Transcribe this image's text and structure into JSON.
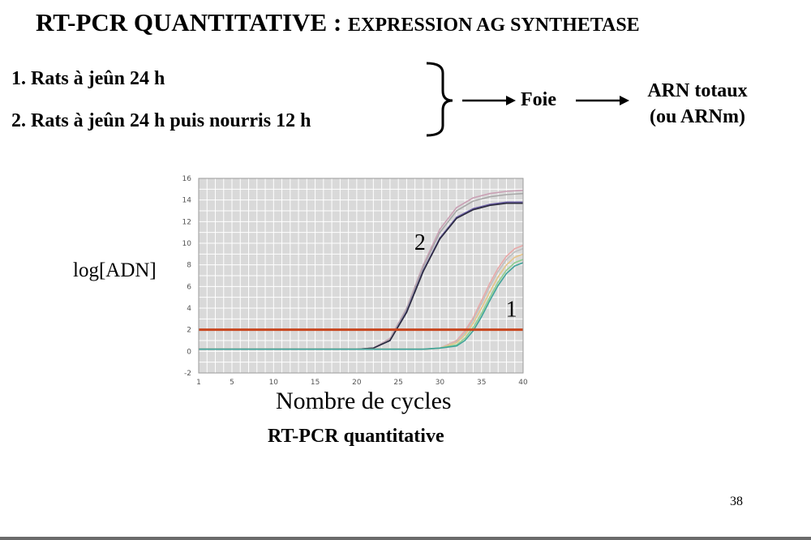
{
  "slide": {
    "title_main": "RT-PCR QUANTITATIVE : ",
    "title_sub": "EXPRESSION AG SYNTHETASE",
    "group1": "1. Rats à jeûn 24 h",
    "group2": "2. Rats à jeûn 24 h puis nourris 12 h",
    "organ": "Foie",
    "result_line1": "ARN totaux",
    "result_line2": "(ou ARNm)",
    "ylabel": "log[ADN]",
    "xlabel": "Nombre de cycles",
    "caption": "RT-PCR quantitative",
    "page_number": "38"
  },
  "chart_data": {
    "type": "line",
    "x_ticks": [
      1,
      5,
      10,
      15,
      20,
      25,
      30,
      35,
      40
    ],
    "y_ticks": [
      -2,
      0,
      2,
      4,
      6,
      8,
      10,
      12,
      14,
      16
    ],
    "xlim": [
      1,
      40
    ],
    "ylim": [
      -2,
      16
    ],
    "grid": true,
    "threshold": {
      "y": 2,
      "color": "#c8461e"
    },
    "curve_labels": [
      {
        "text": "2",
        "x": 27.6,
        "y": 9.4
      },
      {
        "text": "1",
        "x": 38.6,
        "y": 3.2
      }
    ],
    "series": [
      {
        "group": "2",
        "color": "#c9a0b4",
        "x": [
          1,
          5,
          10,
          15,
          20,
          22,
          24,
          26,
          28,
          30,
          32,
          34,
          36,
          38,
          40
        ],
        "values": [
          0.2,
          0.2,
          0.2,
          0.2,
          0.2,
          0.3,
          1.2,
          4.0,
          8.0,
          11.3,
          13.3,
          14.2,
          14.6,
          14.8,
          14.9
        ]
      },
      {
        "group": "2",
        "color": "#a8a8a8",
        "x": [
          1,
          5,
          10,
          15,
          20,
          22,
          24,
          26,
          28,
          30,
          32,
          34,
          36,
          38,
          40
        ],
        "values": [
          0.2,
          0.2,
          0.2,
          0.2,
          0.2,
          0.3,
          1.1,
          3.9,
          7.8,
          11.0,
          13.0,
          13.9,
          14.3,
          14.5,
          14.6
        ]
      },
      {
        "group": "2",
        "color": "#6c5fa6",
        "x": [
          1,
          5,
          10,
          15,
          20,
          22,
          24,
          26,
          28,
          30,
          32,
          34,
          36,
          38,
          40
        ],
        "values": [
          0.2,
          0.2,
          0.2,
          0.2,
          0.2,
          0.3,
          1.0,
          3.7,
          7.5,
          10.5,
          12.4,
          13.2,
          13.6,
          13.8,
          13.8
        ]
      },
      {
        "group": "2",
        "color": "#2b2b3e",
        "x": [
          1,
          5,
          10,
          15,
          20,
          22,
          24,
          26,
          28,
          30,
          32,
          34,
          36,
          38,
          40
        ],
        "values": [
          0.2,
          0.2,
          0.2,
          0.2,
          0.2,
          0.3,
          1.0,
          3.6,
          7.4,
          10.4,
          12.3,
          13.1,
          13.5,
          13.7,
          13.7
        ]
      },
      {
        "group": "1",
        "color": "#e8a8a8",
        "x": [
          1,
          5,
          10,
          15,
          20,
          25,
          28,
          30,
          32,
          33,
          34,
          35,
          36,
          37,
          38,
          39,
          40
        ],
        "values": [
          0.2,
          0.2,
          0.2,
          0.2,
          0.2,
          0.2,
          0.2,
          0.3,
          1.0,
          1.9,
          3.1,
          4.7,
          6.3,
          7.7,
          8.8,
          9.5,
          9.8
        ]
      },
      {
        "group": "1",
        "color": "#bfbfbf",
        "x": [
          1,
          5,
          10,
          15,
          20,
          25,
          28,
          30,
          32,
          33,
          34,
          35,
          36,
          37,
          38,
          39,
          40
        ],
        "values": [
          0.2,
          0.2,
          0.2,
          0.2,
          0.2,
          0.2,
          0.2,
          0.3,
          0.9,
          1.7,
          2.9,
          4.4,
          6.0,
          7.4,
          8.5,
          9.2,
          9.5
        ]
      },
      {
        "group": "1",
        "color": "#e6c488",
        "x": [
          1,
          5,
          10,
          15,
          20,
          25,
          28,
          30,
          32,
          33,
          34,
          35,
          36,
          37,
          38,
          39,
          40
        ],
        "values": [
          0.2,
          0.2,
          0.2,
          0.2,
          0.2,
          0.2,
          0.2,
          0.3,
          0.8,
          1.5,
          2.6,
          4.0,
          5.5,
          6.9,
          8.0,
          8.7,
          9.0
        ]
      },
      {
        "group": "1",
        "color": "#8fcf8f",
        "x": [
          1,
          5,
          10,
          15,
          20,
          25,
          28,
          30,
          32,
          33,
          34,
          35,
          36,
          37,
          38,
          39,
          40
        ],
        "values": [
          0.2,
          0.2,
          0.2,
          0.2,
          0.2,
          0.2,
          0.2,
          0.3,
          0.6,
          1.2,
          2.2,
          3.5,
          5.0,
          6.4,
          7.5,
          8.2,
          8.5
        ]
      },
      {
        "group": "1",
        "color": "#3fa39a",
        "x": [
          1,
          5,
          10,
          15,
          20,
          25,
          28,
          30,
          32,
          33,
          34,
          35,
          36,
          37,
          38,
          39,
          40
        ],
        "values": [
          0.2,
          0.2,
          0.2,
          0.2,
          0.2,
          0.2,
          0.2,
          0.3,
          0.5,
          1.0,
          1.9,
          3.2,
          4.7,
          6.1,
          7.2,
          7.9,
          8.2
        ]
      }
    ]
  }
}
